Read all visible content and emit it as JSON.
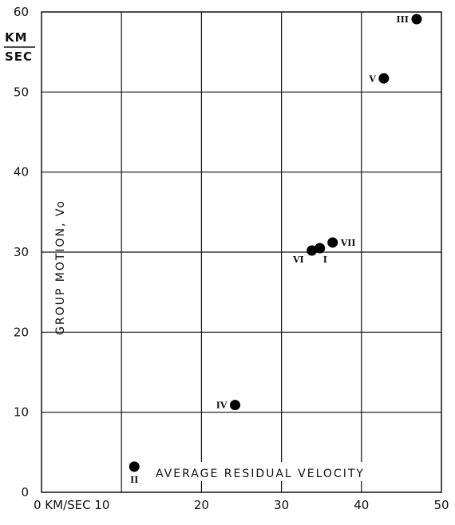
{
  "chart_data": {
    "type": "scatter",
    "title": "",
    "xlabel": "AVERAGE RESIDUAL VELOCITY",
    "x_unit_tick": "0 KM/SEC 10",
    "x_ticks": [
      "20",
      "30",
      "40",
      "50"
    ],
    "ylabel": "GROUP MOTION, Vo",
    "y_unit_top": "KM",
    "y_unit_bottom": "SEC",
    "y_ticks": [
      "0",
      "10",
      "20",
      "30",
      "40",
      "50",
      "60"
    ],
    "xlim": [
      0,
      50
    ],
    "ylim": [
      0,
      60
    ],
    "grid": true,
    "points": [
      {
        "label": "I",
        "x": 34.8,
        "y": 30.5
      },
      {
        "label": "II",
        "x": 11.6,
        "y": 3.2
      },
      {
        "label": "III",
        "x": 46.9,
        "y": 59.1
      },
      {
        "label": "IV",
        "x": 24.2,
        "y": 10.9
      },
      {
        "label": "V",
        "x": 42.8,
        "y": 51.7
      },
      {
        "label": "VI",
        "x": 33.8,
        "y": 30.2
      },
      {
        "label": "VII",
        "x": 36.4,
        "y": 31.2
      }
    ]
  }
}
